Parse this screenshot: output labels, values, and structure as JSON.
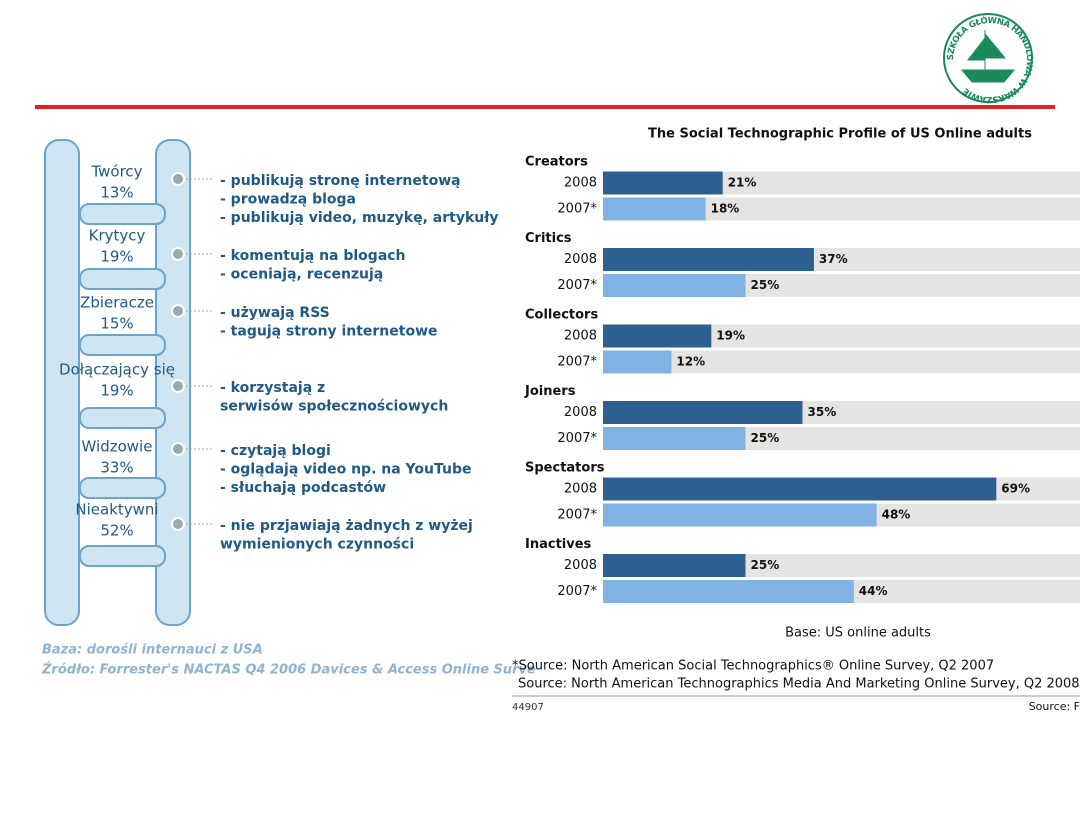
{
  "logo": {
    "text": "SZKOŁA GŁÓWNA HANDLOWA W WARSZAWIE"
  },
  "ladder": {
    "items": [
      {
        "name": "Twórcy",
        "share": "13%",
        "lines": [
          "- publikują stronę internetową",
          "- prowadzą bloga",
          "- publikują video, muzykę, artykuły"
        ]
      },
      {
        "name": "Krytycy",
        "share": "19%",
        "lines": [
          "- komentują na blogach",
          "- oceniają, recenzują"
        ]
      },
      {
        "name": "Zbieracze",
        "share": "15%",
        "lines": [
          "- używają RSS",
          "- tagują strony internetowe"
        ]
      },
      {
        "name": "Dołączający się",
        "share": "19%",
        "lines": [
          "- korzystają z",
          "  serwisów społecznościowych"
        ]
      },
      {
        "name": "Widzowie",
        "share": "33%",
        "lines": [
          "- czytają blogi",
          "- oglądają video np. na YouTube",
          "- słuchają podcastów"
        ]
      },
      {
        "name": "Nieaktywni",
        "share": "52%",
        "lines": [
          "- nie przjawiają żadnych z wyżej",
          "  wymienionych czynności"
        ]
      }
    ],
    "base": "Baza: dorośli internauci z USA",
    "source": "Źródło: Forrester's NACTAS Q4 2006 Davices & Access Online Surve"
  },
  "chart_data": {
    "type": "bar",
    "orientation": "horizontal",
    "title": "The Social Technographic Profile of US Online adults",
    "categories": [
      "Creators",
      "Critics",
      "Collectors",
      "Joiners",
      "Spectators",
      "Inactives"
    ],
    "series": [
      {
        "name": "2008",
        "color": "#2e5f91",
        "values": [
          21,
          37,
          19,
          35,
          69,
          25
        ],
        "value_labels": [
          "21%",
          "37%",
          "19%",
          "35%",
          "69%",
          "25%"
        ]
      },
      {
        "name": "2007*",
        "color": "#80b3e3",
        "values": [
          18,
          25,
          12,
          25,
          48,
          44
        ],
        "value_labels": [
          "18%",
          "25%",
          "12%",
          "25%",
          "48%",
          "44%"
        ]
      }
    ],
    "base_note": "Base: US online adults",
    "sources": [
      "*Source: North American Social Technographics® Online Survey, Q2 2007",
      "Source: North American Technographics Media And Marketing Online Survey, Q2 2008"
    ],
    "id": "44907",
    "source_short": "Source: F"
  }
}
